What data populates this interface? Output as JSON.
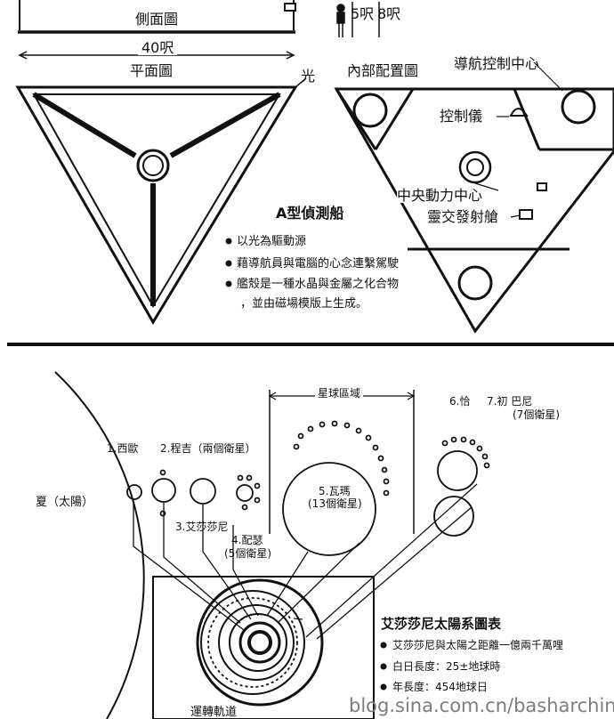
{
  "top": {
    "side_view_label": "側面圖",
    "height_label_1": "5呎",
    "height_label_2": "8呎",
    "width_label": "40呎",
    "plan_view_label": "平面圖",
    "light_label": "光",
    "interior_label": "內部配置圖",
    "nav_center_label": "導航控制中心",
    "control_instrument_label": "控制儀",
    "central_power_label": "中央動力中心",
    "launch_bay_label": "靈交發射艙",
    "ship_type_title": "A型偵測船",
    "notes": [
      "以光為驅動源",
      "藉導航員與電腦的心念連繫駕駛",
      "艦殼是一種水晶與金屬之化合物",
      "，並由磁場模版上生成。"
    ]
  },
  "solar_system": {
    "sun_label": "夏（太陽）",
    "region_label": "星球區域",
    "planets": {
      "p1": "1.西歐",
      "p2": "2.程吉（兩個衛星）",
      "p3": "3.艾莎莎尼",
      "p4_name": "4.配瑟",
      "p4_moons": "(5個衛星)",
      "p5_name": "5.瓦瑪",
      "p5_moons": "(13個衛星)",
      "p6": "6.恰",
      "p7_name": "7.初  巴尼",
      "p7_moons": "(7個衛星)"
    },
    "orbit_label": "運轉軌道",
    "chart_title": "艾莎莎尼太陽系圖表",
    "facts": [
      "艾莎莎尼與太陽之距離一億兩千萬哩",
      "白日長度：25±地球時",
      "年長度：454地球日"
    ]
  },
  "watermark": "blog.sina.com.cn/basharchina"
}
